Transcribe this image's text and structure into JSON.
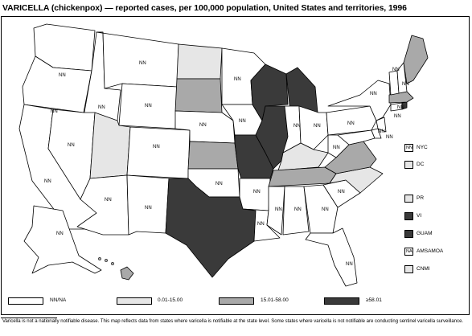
{
  "title": "VARICELLA (chickenpox) — reported cases, per 100,000 population, United States and territories, 1996",
  "state_label": "NN",
  "colors": {
    "none": "#ffffff",
    "low": "#e6e6e6",
    "mid": "#a9a9a9",
    "high": "#3a3a3a",
    "stroke": "#000000"
  },
  "states": [
    {
      "name": "Washington",
      "category": "NN"
    },
    {
      "name": "Oregon",
      "category": "NN"
    },
    {
      "name": "California",
      "category": "NN"
    },
    {
      "name": "Idaho",
      "category": "NN"
    },
    {
      "name": "Nevada",
      "category": "NN"
    },
    {
      "name": "Montana",
      "category": "NN"
    },
    {
      "name": "Wyoming",
      "category": "NN"
    },
    {
      "name": "Utah",
      "category": "0.01-15.00"
    },
    {
      "name": "Arizona",
      "category": "NN"
    },
    {
      "name": "Colorado",
      "category": "NN"
    },
    {
      "name": "New Mexico",
      "category": "NN"
    },
    {
      "name": "North Dakota",
      "category": "0.01-15.00"
    },
    {
      "name": "South Dakota",
      "category": "15.01-58.00"
    },
    {
      "name": "Nebraska",
      "category": "NN"
    },
    {
      "name": "Kansas",
      "category": "15.01-58.00"
    },
    {
      "name": "Oklahoma",
      "category": "NN"
    },
    {
      "name": "Texas",
      "category": "≥58.01"
    },
    {
      "name": "Minnesota",
      "category": "NN"
    },
    {
      "name": "Iowa",
      "category": "NN"
    },
    {
      "name": "Missouri",
      "category": "≥58.01"
    },
    {
      "name": "Arkansas",
      "category": "NN"
    },
    {
      "name": "Louisiana",
      "category": "NN"
    },
    {
      "name": "Wisconsin",
      "category": "≥58.01"
    },
    {
      "name": "Illinois",
      "category": "≥58.01"
    },
    {
      "name": "Michigan",
      "category": "≥58.01"
    },
    {
      "name": "Indiana",
      "category": "NN"
    },
    {
      "name": "Ohio",
      "category": "NN"
    },
    {
      "name": "Kentucky",
      "category": "0.01-15.00"
    },
    {
      "name": "Tennessee",
      "category": "15.01-58.00"
    },
    {
      "name": "Mississippi",
      "category": "NN"
    },
    {
      "name": "Alabama",
      "category": "NN"
    },
    {
      "name": "Georgia",
      "category": "NN"
    },
    {
      "name": "Florida",
      "category": "NN"
    },
    {
      "name": "South Carolina",
      "category": "NN"
    },
    {
      "name": "North Carolina",
      "category": "0.01-15.00"
    },
    {
      "name": "Virginia",
      "category": "15.01-58.00"
    },
    {
      "name": "West Virginia",
      "category": "NN"
    },
    {
      "name": "Pennsylvania",
      "category": "NN"
    },
    {
      "name": "New York",
      "category": "NN"
    },
    {
      "name": "Maryland",
      "category": "NN"
    },
    {
      "name": "Delaware",
      "category": "NN"
    },
    {
      "name": "New Jersey",
      "category": "NN"
    },
    {
      "name": "Connecticut",
      "category": "NN"
    },
    {
      "name": "Rhode Island",
      "category": "≥58.01"
    },
    {
      "name": "Massachusetts",
      "category": "15.01-58.00"
    },
    {
      "name": "Vermont",
      "category": "NN"
    },
    {
      "name": "New Hampshire",
      "category": "NN"
    },
    {
      "name": "Maine",
      "category": "15.01-58.00"
    },
    {
      "name": "Alaska",
      "category": "NN"
    },
    {
      "name": "Hawaii",
      "category": "15.01-58.00"
    }
  ],
  "territories": [
    {
      "label": "NYC",
      "category": "NN",
      "box_text": "NN"
    },
    {
      "label": "DC",
      "category": "0.01-15.00",
      "box_text": ""
    },
    {
      "label": "PR",
      "category": "0.01-15.00",
      "box_text": ""
    },
    {
      "label": "VI",
      "category": "≥58.01",
      "box_text": ""
    },
    {
      "label": "GUAM",
      "category": "≥58.01",
      "box_text": ""
    },
    {
      "label": "AMSAMOA",
      "category": "NA",
      "box_text": "NA"
    },
    {
      "label": "CNMI",
      "category": "0.01-15.00",
      "box_text": ""
    }
  ],
  "legend": [
    {
      "label": "NN/NA",
      "category": "none"
    },
    {
      "label": "0.01-15.00",
      "category": "low"
    },
    {
      "label": "15.01-58.00",
      "category": "mid"
    },
    {
      "label": "≥58.01",
      "category": "high"
    }
  ],
  "footnote": "Varicella is not a nationally notifiable disease. This map reflects data from states where varicella is notifiable at the state level. Some states where varicella is not notifiable are conducting sentinel varicella surveillance."
}
